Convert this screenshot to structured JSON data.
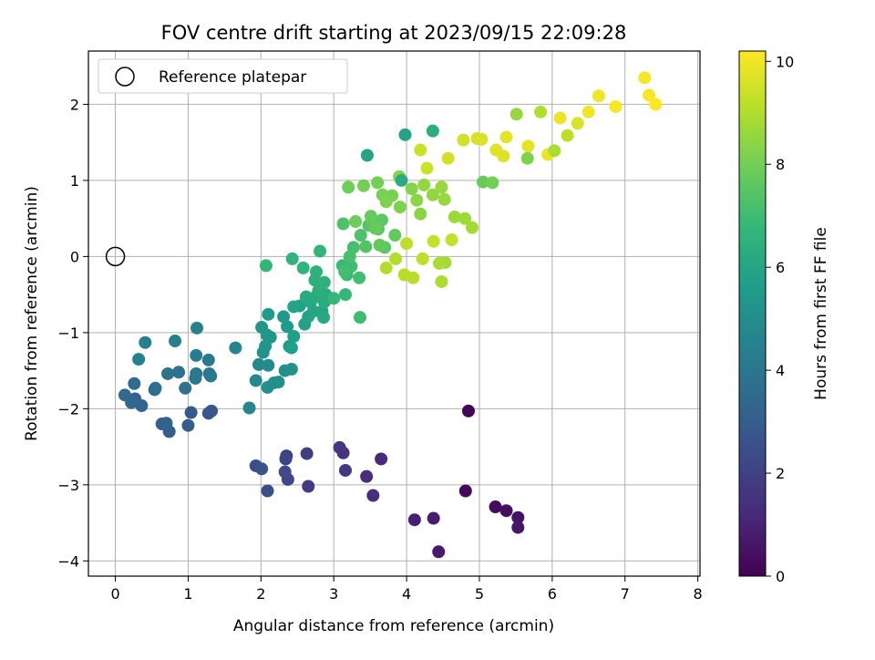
{
  "chart_data": {
    "type": "scatter",
    "title": "FOV centre drift starting at 2023/09/15 22:09:28",
    "xlabel": "Angular distance from reference (arcmin)",
    "ylabel": "Rotation from reference (arcmin)",
    "xlim": [
      -0.37,
      8.03
    ],
    "ylim": [
      -4.2,
      2.7
    ],
    "xticks": [
      "0",
      "1",
      "2",
      "3",
      "4",
      "5",
      "6",
      "7",
      "8"
    ],
    "yticks": [
      "−4",
      "−3",
      "−2",
      "−1",
      "0",
      "1",
      "2"
    ],
    "grid": true,
    "legend": {
      "placement": "upper-left",
      "entries": [
        {
          "label": "Reference platepar",
          "marker": "open-circle",
          "color": "#000000",
          "point": [
            0,
            0
          ]
        }
      ]
    },
    "colorbar": {
      "label": "Hours from first FF file",
      "range": [
        0,
        10.2
      ],
      "ticks": [
        "0",
        "2",
        "4",
        "6",
        "8",
        "10"
      ],
      "colormap": [
        "#440154",
        "#482878",
        "#3e4989",
        "#31688e",
        "#26828e",
        "#1f9e89",
        "#35b779",
        "#6ece58",
        "#b5de2b",
        "#fde725"
      ]
    },
    "series": [
      {
        "marker": "filled-circle",
        "points": [
          [
            4.85,
            -2.03,
            0.1
          ],
          [
            4.81,
            -3.08,
            0.2
          ],
          [
            5.22,
            -3.29,
            0.3
          ],
          [
            5.37,
            -3.34,
            0.4
          ],
          [
            5.53,
            -3.43,
            0.5
          ],
          [
            5.53,
            -3.56,
            0.6
          ],
          [
            4.44,
            -3.88,
            0.7
          ],
          [
            4.37,
            -3.44,
            0.8
          ],
          [
            4.11,
            -3.46,
            0.9
          ],
          [
            3.65,
            -2.66,
            1.2
          ],
          [
            3.45,
            -2.89,
            1.3
          ],
          [
            3.54,
            -3.14,
            1.4
          ],
          [
            3.13,
            -2.58,
            1.5
          ],
          [
            3.08,
            -2.51,
            1.6
          ],
          [
            3.16,
            -2.81,
            1.7
          ],
          [
            2.65,
            -3.02,
            1.8
          ],
          [
            2.63,
            -2.59,
            1.9
          ],
          [
            2.35,
            -2.62,
            2.0
          ],
          [
            2.34,
            -2.66,
            2.1
          ],
          [
            2.37,
            -2.93,
            2.2
          ],
          [
            2.33,
            -2.83,
            2.3
          ],
          [
            2.09,
            -3.08,
            2.4
          ],
          [
            1.93,
            -2.75,
            2.5
          ],
          [
            2.01,
            -2.79,
            2.6
          ],
          [
            1.28,
            -2.06,
            2.7
          ],
          [
            1.32,
            -2.03,
            2.8
          ],
          [
            1.04,
            -2.05,
            2.9
          ],
          [
            1.0,
            -2.22,
            3.0
          ],
          [
            0.74,
            -2.3,
            3.0
          ],
          [
            0.64,
            -2.2,
            3.1
          ],
          [
            0.7,
            -2.19,
            3.2
          ],
          [
            0.36,
            -1.96,
            3.3
          ],
          [
            0.27,
            -1.87,
            3.3
          ],
          [
            0.22,
            -1.92,
            3.4
          ],
          [
            0.13,
            -1.82,
            3.5
          ],
          [
            0.26,
            -1.67,
            3.5
          ],
          [
            0.54,
            -1.75,
            3.6
          ],
          [
            0.55,
            -1.73,
            3.7
          ],
          [
            0.96,
            -1.73,
            3.8
          ],
          [
            0.87,
            -1.52,
            3.9
          ],
          [
            0.72,
            -1.54,
            3.9
          ],
          [
            1.1,
            -1.6,
            4.0
          ],
          [
            1.11,
            -1.54,
            4.1
          ],
          [
            1.29,
            -1.54,
            4.1
          ],
          [
            1.31,
            -1.57,
            4.2
          ],
          [
            1.28,
            -1.36,
            4.2
          ],
          [
            1.11,
            -1.3,
            4.3
          ],
          [
            0.82,
            -1.11,
            4.4
          ],
          [
            0.41,
            -1.13,
            4.4
          ],
          [
            0.32,
            -1.35,
            4.5
          ],
          [
            1.12,
            -0.94,
            4.5
          ],
          [
            1.65,
            -1.2,
            4.6
          ],
          [
            1.84,
            -1.99,
            4.7
          ],
          [
            1.93,
            -1.63,
            4.8
          ],
          [
            1.97,
            -1.42,
            4.8
          ],
          [
            2.1,
            -1.43,
            4.9
          ],
          [
            2.09,
            -1.72,
            5.0
          ],
          [
            2.18,
            -1.66,
            5.0
          ],
          [
            2.24,
            -1.65,
            5.1
          ],
          [
            2.33,
            -1.5,
            5.1
          ],
          [
            2.42,
            -1.48,
            5.2
          ],
          [
            2.03,
            -1.26,
            5.2
          ],
          [
            2.06,
            -1.18,
            5.3
          ],
          [
            2.13,
            -1.06,
            5.3
          ],
          [
            2.08,
            -1.03,
            5.4
          ],
          [
            2.01,
            -0.93,
            5.4
          ],
          [
            2.1,
            -0.76,
            5.5
          ],
          [
            2.31,
            -0.79,
            5.5
          ],
          [
            2.36,
            -0.92,
            5.6
          ],
          [
            2.39,
            -1.18,
            5.6
          ],
          [
            2.45,
            -1.05,
            5.7
          ],
          [
            2.42,
            -1.2,
            5.7
          ],
          [
            2.6,
            -0.89,
            5.8
          ],
          [
            2.53,
            -0.65,
            5.8
          ],
          [
            2.45,
            -0.66,
            5.9
          ],
          [
            2.65,
            -0.79,
            5.9
          ],
          [
            2.72,
            -0.72,
            6.0
          ],
          [
            2.84,
            -0.72,
            6.0
          ],
          [
            2.86,
            -0.8,
            6.1
          ],
          [
            2.68,
            -0.6,
            6.1
          ],
          [
            2.62,
            -0.53,
            6.2
          ],
          [
            2.75,
            -0.53,
            6.2
          ],
          [
            2.87,
            -0.6,
            6.3
          ],
          [
            2.89,
            -0.5,
            6.3
          ],
          [
            2.79,
            -0.45,
            6.4
          ],
          [
            2.74,
            -0.31,
            6.4
          ],
          [
            2.76,
            -0.2,
            6.5
          ],
          [
            2.87,
            -0.34,
            6.5
          ],
          [
            2.58,
            -0.15,
            6.6
          ],
          [
            2.43,
            -0.03,
            6.6
          ],
          [
            2.07,
            -0.12,
            6.7
          ],
          [
            2.81,
            0.07,
            6.7
          ],
          [
            3.0,
            -0.55,
            6.8
          ],
          [
            3.16,
            -0.5,
            6.8
          ],
          [
            3.18,
            -0.24,
            6.9
          ],
          [
            3.12,
            -0.12,
            6.9
          ],
          [
            3.24,
            -0.13,
            7.0
          ],
          [
            3.36,
            -0.8,
            7.0
          ],
          [
            3.35,
            -0.28,
            7.1
          ],
          [
            3.15,
            -0.2,
            7.1
          ],
          [
            3.22,
            0.0,
            7.2
          ],
          [
            3.27,
            0.12,
            7.2
          ],
          [
            3.13,
            0.43,
            7.3
          ],
          [
            3.37,
            0.28,
            7.3
          ],
          [
            3.44,
            0.13,
            7.4
          ],
          [
            3.48,
            0.41,
            7.4
          ],
          [
            3.52,
            0.43,
            7.5
          ],
          [
            3.61,
            0.36,
            7.5
          ],
          [
            3.66,
            0.48,
            7.6
          ],
          [
            3.7,
            0.12,
            7.6
          ],
          [
            3.63,
            0.15,
            7.7
          ],
          [
            3.84,
            0.28,
            7.7
          ],
          [
            3.57,
            0.37,
            7.8
          ],
          [
            3.51,
            0.53,
            7.8
          ],
          [
            3.3,
            0.46,
            7.9
          ],
          [
            3.2,
            0.91,
            7.9
          ],
          [
            3.41,
            0.93,
            8.0
          ],
          [
            3.6,
            0.97,
            8.0
          ],
          [
            3.67,
            0.81,
            8.1
          ],
          [
            3.8,
            0.8,
            8.1
          ],
          [
            3.72,
            0.72,
            8.2
          ],
          [
            3.91,
            0.65,
            8.2
          ],
          [
            3.9,
            1.05,
            8.3
          ],
          [
            4.07,
            0.89,
            8.3
          ],
          [
            4.14,
            0.74,
            8.4
          ],
          [
            4.19,
            0.56,
            8.4
          ],
          [
            4.36,
            0.81,
            8.5
          ],
          [
            4.24,
            0.94,
            8.5
          ],
          [
            4.48,
            0.91,
            8.6
          ],
          [
            4.52,
            0.75,
            8.6
          ],
          [
            4.66,
            0.52,
            8.7
          ],
          [
            4.8,
            0.5,
            8.7
          ],
          [
            4.9,
            0.38,
            8.8
          ],
          [
            4.53,
            -0.08,
            8.8
          ],
          [
            4.45,
            -0.09,
            8.9
          ],
          [
            4.48,
            -0.33,
            8.9
          ],
          [
            3.72,
            -0.15,
            9.0
          ],
          [
            3.85,
            -0.03,
            9.0
          ],
          [
            3.97,
            -0.24,
            9.1
          ],
          [
            4.09,
            -0.28,
            9.1
          ],
          [
            4.22,
            -0.03,
            9.2
          ],
          [
            4.0,
            0.17,
            9.2
          ],
          [
            4.37,
            0.2,
            9.3
          ],
          [
            4.62,
            0.22,
            9.3
          ],
          [
            4.28,
            1.16,
            9.4
          ],
          [
            4.19,
            1.4,
            9.4
          ],
          [
            4.57,
            1.29,
            9.5
          ],
          [
            4.78,
            1.53,
            9.5
          ],
          [
            4.97,
            1.55,
            9.6
          ],
          [
            5.03,
            1.54,
            9.6
          ],
          [
            5.23,
            1.4,
            9.7
          ],
          [
            5.33,
            1.32,
            9.7
          ],
          [
            5.37,
            1.57,
            9.8
          ],
          [
            5.67,
            1.45,
            9.8
          ],
          [
            5.94,
            1.34,
            9.9
          ],
          [
            6.11,
            1.82,
            9.9
          ],
          [
            6.5,
            1.9,
            10.0
          ],
          [
            6.64,
            2.11,
            10.0
          ],
          [
            6.87,
            1.97,
            10.1
          ],
          [
            7.27,
            2.35,
            10.1
          ],
          [
            7.33,
            2.12,
            10.1
          ],
          [
            7.42,
            2.0,
            10.2
          ],
          [
            3.98,
            1.6,
            5.9
          ],
          [
            3.93,
            1.0,
            6.3
          ],
          [
            3.46,
            1.33,
            6.0
          ],
          [
            4.36,
            1.65,
            6.4
          ],
          [
            5.05,
            0.98,
            7.8
          ],
          [
            5.18,
            0.97,
            8.0
          ],
          [
            5.51,
            1.87,
            8.6
          ],
          [
            5.66,
            1.29,
            8.2
          ],
          [
            5.84,
            1.9,
            9.0
          ],
          [
            6.03,
            1.39,
            8.9
          ],
          [
            6.21,
            1.59,
            9.2
          ],
          [
            6.35,
            1.75,
            9.6
          ]
        ]
      }
    ]
  }
}
